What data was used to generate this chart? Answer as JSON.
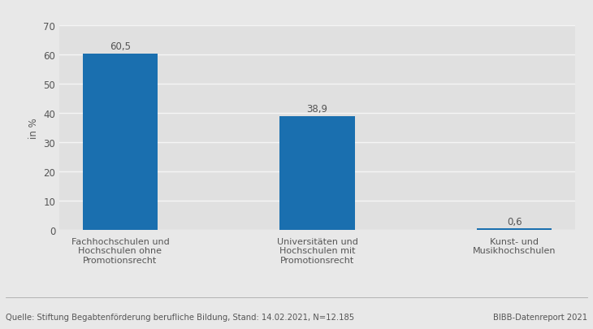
{
  "categories": [
    "Fachhochschulen und\nHochschulen ohne\nPromotionsrecht",
    "Universitäten und\nHochschulen mit\nPromotionsrecht",
    "Kunst- und\nMusikhochschulen"
  ],
  "values": [
    60.5,
    38.9,
    0.6
  ],
  "bar_color": "#1a6faf",
  "bar_width": 0.38,
  "ylim": [
    0,
    70
  ],
  "yticks": [
    0,
    10,
    20,
    30,
    40,
    50,
    60,
    70
  ],
  "ylabel": "in %",
  "ylabel_fontsize": 8.5,
  "value_labels": [
    "60,5",
    "38,9",
    "0,6"
  ],
  "value_fontsize": 8.5,
  "tick_fontsize": 8.5,
  "category_fontsize": 8,
  "figure_bg_color": "#e8e8e8",
  "plot_bg_color": "#e0e0e0",
  "grid_color": "#f5f5f5",
  "source_text": "Quelle: Stiftung Begabtenförderung berufliche Bildung, Stand: 14.02.2021, N=12.185",
  "source_right_text": "BIBB-Datenreport 2021",
  "source_fontsize": 7.2,
  "text_color": "#555555"
}
